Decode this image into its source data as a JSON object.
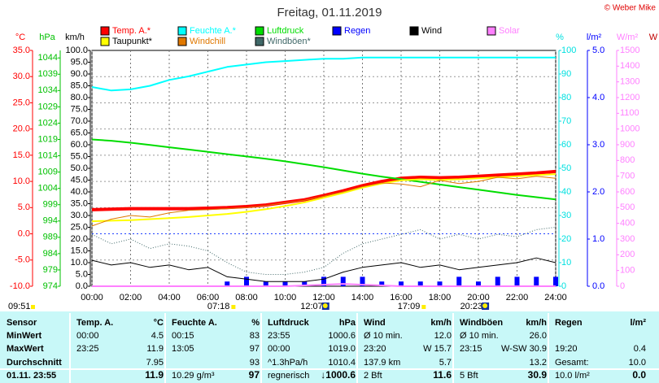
{
  "chart_data": {
    "type": "line",
    "title": "Freitag, 01.11.2019",
    "copyright": "© Weber Mike",
    "xlim": [
      0,
      24
    ],
    "xticks": [
      {
        "value": 0,
        "label": "00:00"
      },
      {
        "value": 2,
        "label": "02:00"
      },
      {
        "value": 4,
        "label": "04:00"
      },
      {
        "value": 6,
        "label": "06:00"
      },
      {
        "value": 8,
        "label": "08:00"
      },
      {
        "value": 10,
        "label": "10:00"
      },
      {
        "value": 12,
        "label": "12:00"
      },
      {
        "value": 14,
        "label": "14:00"
      },
      {
        "value": 16,
        "label": "16:00"
      },
      {
        "value": 18,
        "label": "18:00"
      },
      {
        "value": 20,
        "label": "20:00"
      },
      {
        "value": 22,
        "label": "22:00"
      },
      {
        "value": 24,
        "label": "24:00"
      }
    ],
    "grid": true,
    "axes": {
      "y": {
        "label": "km/h",
        "color": "#000000",
        "lim": [
          0,
          100
        ],
        "ticks": [
          {
            "value": 0,
            "label": "0.0"
          },
          {
            "value": 5,
            "label": "5.0"
          },
          {
            "value": 10,
            "label": "10.0"
          },
          {
            "value": 15,
            "label": "15.0"
          },
          {
            "value": 20,
            "label": "20.0"
          },
          {
            "value": 25,
            "label": "25.0"
          },
          {
            "value": 30,
            "label": "30.0"
          },
          {
            "value": 35,
            "label": "35.0"
          },
          {
            "value": 40,
            "label": "40.0"
          },
          {
            "value": 45,
            "label": "45.0"
          },
          {
            "value": 50,
            "label": "50.0"
          },
          {
            "value": 55,
            "label": "55.0"
          },
          {
            "value": 60,
            "label": "60.0"
          },
          {
            "value": 65,
            "label": "65.0"
          },
          {
            "value": 70,
            "label": "70.0"
          },
          {
            "value": 75,
            "label": "75.0"
          },
          {
            "value": 80,
            "label": "80.0"
          },
          {
            "value": 85,
            "label": "85.0"
          },
          {
            "value": 90,
            "label": "90.0"
          },
          {
            "value": 95,
            "label": "95.0"
          },
          {
            "value": 100,
            "label": "100.0"
          }
        ]
      },
      "y2": {
        "label": "°C",
        "color": "#ff0000",
        "lim": [
          -10,
          35
        ],
        "ticks": [
          {
            "value": -10,
            "label": "-10.0"
          },
          {
            "value": -5,
            "label": "-5.0"
          },
          {
            "value": 0,
            "label": "0.0"
          },
          {
            "value": 5,
            "label": "5.0"
          },
          {
            "value": 10,
            "label": "10.0"
          },
          {
            "value": 15,
            "label": "15.0"
          },
          {
            "value": 20,
            "label": "20.0"
          },
          {
            "value": 25,
            "label": "25.0"
          },
          {
            "value": 30,
            "label": "30.0"
          },
          {
            "value": 35,
            "label": "35.0"
          }
        ]
      },
      "y3": {
        "label": "hPa",
        "color": "#00c000",
        "lim": [
          974,
          1046.3
        ],
        "ticks": [
          974,
          979,
          984,
          989,
          994,
          999,
          1004,
          1009,
          1014,
          1019,
          1024,
          1029,
          1034,
          1039,
          1044
        ]
      },
      "y4": {
        "label": "%",
        "color": "#00e0e0",
        "lim": [
          0,
          100
        ],
        "ticks": [
          0,
          10,
          20,
          30,
          40,
          50,
          60,
          70,
          80,
          90,
          100
        ]
      },
      "y5": {
        "label": "l/m²",
        "color": "#0000ff",
        "lim": [
          0,
          5
        ],
        "ticks": [
          {
            "value": 0,
            "label": "0.0"
          },
          {
            "value": 1,
            "label": "1.0"
          },
          {
            "value": 2,
            "label": "2.0"
          },
          {
            "value": 3,
            "label": "3.0"
          },
          {
            "value": 4,
            "label": "4.0"
          },
          {
            "value": 5,
            "label": "5.0"
          }
        ]
      },
      "y6": {
        "label": "W/m²",
        "color": "#ff80ff",
        "lim": [
          0,
          1500
        ],
        "ticks": [
          0,
          100,
          200,
          300,
          400,
          500,
          600,
          700,
          800,
          900,
          1000,
          1100,
          1200,
          1300,
          1400,
          1500
        ]
      },
      "y7": {
        "label": "W",
        "color": "#c00000"
      }
    },
    "x": [
      0,
      1,
      2,
      3,
      4,
      5,
      6,
      7,
      8,
      9,
      10,
      11,
      12,
      13,
      14,
      15,
      16,
      17,
      18,
      19,
      20,
      21,
      22,
      23,
      24
    ],
    "series": [
      {
        "name": "Temp. A.*",
        "color": "#ff0000",
        "axis": "y2",
        "width": 4,
        "values": [
          4.6,
          4.7,
          4.8,
          4.8,
          4.8,
          4.8,
          4.9,
          5.0,
          5.2,
          5.5,
          6.0,
          6.5,
          7.3,
          8.2,
          9.2,
          10.0,
          10.6,
          10.8,
          10.7,
          10.8,
          11.0,
          11.2,
          11.4,
          11.6,
          11.9
        ]
      },
      {
        "name": "Feuchte A.*",
        "color": "#00ffff",
        "axis": "y4",
        "width": 2,
        "values": [
          84.5,
          83,
          83.5,
          85,
          87.5,
          89,
          91,
          93,
          94,
          95,
          95.5,
          96,
          96.5,
          96.5,
          97,
          97,
          97,
          97,
          97,
          97,
          97,
          97,
          97,
          97,
          97
        ]
      },
      {
        "name": "Luftdruck",
        "color": "#00dd00",
        "axis": "y3",
        "width": 2,
        "values": [
          1019.0,
          1018.6,
          1018.0,
          1017.3,
          1016.6,
          1015.9,
          1015.2,
          1014.5,
          1013.8,
          1013.1,
          1012.3,
          1011.4,
          1010.5,
          1009.5,
          1008.5,
          1007.6,
          1006.8,
          1006.0,
          1005.2,
          1004.4,
          1003.6,
          1002.8,
          1002.0,
          1001.3,
          1000.6
        ]
      },
      {
        "name": "Regen",
        "color": "#0000ff",
        "axis": "y5",
        "bars": true,
        "values": [
          0,
          0,
          0,
          0,
          0,
          0,
          0,
          0.1,
          0.2,
          0.1,
          0.1,
          0.1,
          0.2,
          0.2,
          0.2,
          0.1,
          0.1,
          0.1,
          0.1,
          0.2,
          0.1,
          0.2,
          0.2,
          0.2,
          0.2
        ]
      },
      {
        "name": "Wind",
        "color": "#000000",
        "axis": "y",
        "width": 1,
        "values": [
          11,
          9,
          10,
          8,
          9,
          7,
          8,
          4,
          3,
          2,
          2,
          2,
          3,
          6,
          8,
          9,
          10,
          8,
          9,
          7,
          8,
          9,
          10,
          12,
          10
        ]
      },
      {
        "name": "Solar",
        "color": "#ff80ff",
        "axis": "y6",
        "width": 2,
        "values": [
          0,
          0,
          0,
          0,
          0,
          0,
          0,
          0,
          0,
          0,
          0,
          5,
          10,
          15,
          10,
          5,
          0,
          0,
          0,
          0,
          0,
          0,
          0,
          0,
          0
        ]
      },
      {
        "name": "Taupunkt*",
        "color": "#ffff00",
        "axis": "y2",
        "width": 2,
        "values": [
          2.4,
          2.5,
          2.6,
          2.8,
          3.0,
          3.2,
          3.5,
          3.8,
          4.2,
          4.7,
          5.3,
          6.0,
          6.9,
          7.8,
          8.8,
          9.6,
          10.2,
          10.4,
          10.3,
          10.4,
          10.6,
          10.8,
          11.0,
          11.2,
          11.4
        ]
      },
      {
        "name": "Windchill",
        "color": "#e07800",
        "axis": "y2",
        "width": 1,
        "values": [
          1.5,
          2.8,
          3.5,
          3.2,
          4.0,
          4.5,
          4.6,
          4.8,
          5.0,
          5.4,
          5.9,
          6.4,
          7.2,
          8.0,
          9.0,
          9.7,
          9.5,
          9.0,
          10.2,
          9.6,
          10.0,
          10.8,
          10.5,
          11.0,
          10.6
        ]
      },
      {
        "name": "Windböen*",
        "color": "#406868",
        "axis": "y",
        "width": 1,
        "dashed": true,
        "values": [
          22,
          18,
          20,
          16,
          18,
          17,
          15,
          10,
          6,
          5,
          5,
          6,
          8,
          14,
          18,
          20,
          22,
          24,
          20,
          22,
          20,
          22,
          21,
          24,
          25
        ]
      }
    ],
    "events": [
      {
        "label": "09:51",
        "kind": "moon-left"
      },
      {
        "label": "07:18",
        "kind": "sun"
      },
      {
        "label": "12:07",
        "kind": "moon"
      },
      {
        "label": "17:09",
        "kind": "sun"
      },
      {
        "label": "20:23",
        "kind": "moon"
      }
    ]
  },
  "table": {
    "sensor": "Sensor",
    "columns": [
      {
        "name": "Temp. A.",
        "unit": "°C"
      },
      {
        "name": "Feuchte A.",
        "unit": "%"
      },
      {
        "name": "Luftdruck",
        "unit": "hPa"
      },
      {
        "name": "Wind",
        "unit": "km/h"
      },
      {
        "name": "Windböen",
        "unit": "km/h"
      },
      {
        "name": "Regen",
        "unit": "l/m²"
      }
    ],
    "rows": [
      {
        "label": "MinWert",
        "cells": [
          [
            "00:00",
            "4.5"
          ],
          [
            "00:15",
            "83"
          ],
          [
            "23:55",
            "1000.6"
          ],
          [
            "Ø 10 min.",
            "12.0"
          ],
          [
            "Ø 10 min.",
            "26.0"
          ],
          [
            null,
            null
          ]
        ]
      },
      {
        "label": "MaxWert",
        "cells": [
          [
            "23:25",
            "11.9"
          ],
          [
            "13:05",
            "97"
          ],
          [
            "00:00",
            "1019.0"
          ],
          [
            "23:20",
            "W 15.7"
          ],
          [
            "23:15",
            "W-SW 30.9"
          ],
          [
            "19:20",
            "0.4"
          ]
        ]
      },
      {
        "label": "Durchschnitt",
        "cells": [
          [
            null,
            "7.95"
          ],
          [
            null,
            "93"
          ],
          [
            "^1.3hPa/h",
            "1010.4"
          ],
          [
            "137.9 km",
            "5.7"
          ],
          [
            null,
            "13.2"
          ],
          [
            "Gesamt:",
            "10.0"
          ]
        ]
      },
      {
        "label": "01.11. 23:55",
        "current": true,
        "cells": [
          [
            null,
            "11.9"
          ],
          [
            "10.29 g/m³",
            "97"
          ],
          [
            "regnerisch",
            "↓1000.6"
          ],
          [
            "2 Bft",
            "11.6"
          ],
          [
            "5 Bft",
            "30.9"
          ],
          [
            "10.0 l/m²",
            "0.0"
          ]
        ]
      }
    ]
  }
}
